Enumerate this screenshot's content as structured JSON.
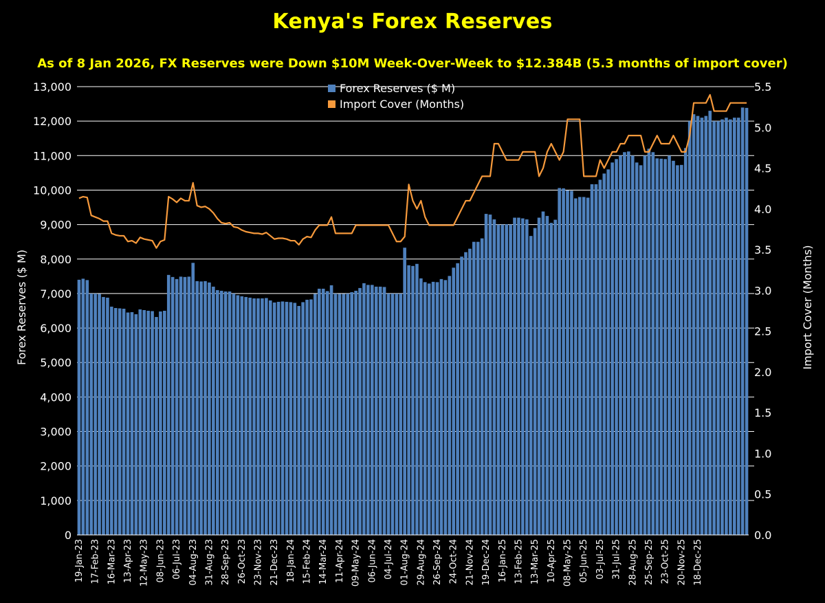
{
  "chart_data": {
    "type": "bar",
    "title": "Kenya's Forex Reserves",
    "subtitle": "As of 8 Jan 2026, FX Reserves were Down $10M Week-Over-Week to $12.384B (5.3 months of import cover)",
    "ylabel": "Forex Reserves ($ M)",
    "y2label": "Import Cover (Months)",
    "ylim": [
      0,
      13000
    ],
    "y2lim": [
      0,
      5.5
    ],
    "yticks": [
      "0",
      "1,000",
      "2,000",
      "3,000",
      "4,000",
      "5,000",
      "6,000",
      "7,000",
      "8,000",
      "9,000",
      "10,000",
      "11,000",
      "12,000",
      "13,000"
    ],
    "y2ticks": [
      "0.0",
      "0.5",
      "1.0",
      "1.5",
      "2.0",
      "2.5",
      "3.0",
      "3.5",
      "4.0",
      "4.5",
      "5.0",
      "5.5"
    ],
    "grid": "horizontal",
    "legend_position": "top-center",
    "x_tick_labels": [
      "19-Jan-23",
      "17-Feb-23",
      "16-Mar-23",
      "13-Apr-23",
      "12-May-23",
      "08-Jun-23",
      "06-Jul-23",
      "04-Aug-23",
      "31-Aug-23",
      "28-Sep-23",
      "26-Oct-23",
      "23-Nov-23",
      "21-Dec-23",
      "18-Jan-24",
      "15-Feb-24",
      "14-Mar-24",
      "11-Apr-24",
      "09-May-24",
      "06-Jun-24",
      "04-Jul-24",
      "01-Aug-24",
      "29-Aug-24",
      "26-Sep-24",
      "24-Oct-24",
      "21-Nov-24",
      "19-Dec-24",
      "16-Jan-25",
      "13-Feb-25",
      "13-Mar-25",
      "10-Apr-25",
      "08-May-25",
      "05-Jun-25",
      "03-Jul-25",
      "31-Jul-25",
      "28-Aug-25",
      "25-Sep-25",
      "23-Oct-25",
      "20-Nov-25",
      "18-Dec-25"
    ],
    "colors": {
      "bars": "#4f81bd",
      "line": "#f79a3c",
      "grid": "#ffffff",
      "title": "#ffff00"
    },
    "series": [
      {
        "name": "Forex Reserves ($ M)",
        "type": "bar",
        "axis": "left",
        "values": [
          7400,
          7430,
          7390,
          7000,
          7000,
          6990,
          6900,
          6880,
          6620,
          6580,
          6570,
          6560,
          6450,
          6460,
          6400,
          6540,
          6520,
          6500,
          6490,
          6320,
          6480,
          6500,
          7540,
          7480,
          7420,
          7490,
          7480,
          7490,
          7890,
          7360,
          7350,
          7360,
          7320,
          7200,
          7100,
          7080,
          7060,
          7060,
          7000,
          6950,
          6920,
          6900,
          6880,
          6860,
          6860,
          6860,
          6870,
          6800,
          6740,
          6760,
          6770,
          6760,
          6750,
          6730,
          6640,
          6750,
          6820,
          6830,
          6990,
          7140,
          7140,
          7070,
          7240,
          7000,
          6990,
          6990,
          7000,
          7040,
          7080,
          7160,
          7300,
          7250,
          7250,
          7200,
          7200,
          7190,
          7000,
          7000,
          7000,
          7000,
          8330,
          7820,
          7800,
          7860,
          7440,
          7330,
          7290,
          7340,
          7330,
          7420,
          7390,
          7510,
          7750,
          7880,
          8070,
          8200,
          8300,
          8500,
          8500,
          8600,
          9310,
          9290,
          9150,
          9000,
          9000,
          9010,
          9000,
          9200,
          9200,
          9180,
          9150,
          8670,
          8900,
          9200,
          9380,
          9250,
          9050,
          9140,
          10060,
          10050,
          9990,
          9980,
          9760,
          9800,
          9800,
          9780,
          10170,
          10170,
          10300,
          10480,
          10600,
          10800,
          10900,
          11000,
          11100,
          11120,
          11000,
          10800,
          10720,
          11000,
          11200,
          11100,
          10920,
          10910,
          10900,
          11000,
          10850,
          10720,
          10730,
          11220,
          12000,
          12200,
          12150,
          12100,
          12150,
          12300,
          12000,
          12000,
          12050,
          12100,
          12050,
          12100,
          12100,
          12394,
          12384
        ],
        "x_range": [
          "19-Jan-23",
          "08-Jan-26"
        ]
      },
      {
        "name": "Import Cover (Months)",
        "type": "line",
        "axis": "right",
        "values": [
          4.13,
          4.15,
          4.14,
          3.92,
          3.9,
          3.88,
          3.85,
          3.85,
          3.7,
          3.68,
          3.67,
          3.67,
          3.6,
          3.61,
          3.58,
          3.65,
          3.63,
          3.62,
          3.61,
          3.52,
          3.6,
          3.62,
          4.15,
          4.12,
          4.08,
          4.13,
          4.1,
          4.1,
          4.32,
          4.04,
          4.02,
          4.03,
          4.0,
          3.95,
          3.88,
          3.83,
          3.82,
          3.83,
          3.78,
          3.77,
          3.74,
          3.72,
          3.71,
          3.7,
          3.7,
          3.69,
          3.71,
          3.67,
          3.63,
          3.64,
          3.64,
          3.63,
          3.61,
          3.61,
          3.56,
          3.63,
          3.66,
          3.65,
          3.74,
          3.8,
          3.8,
          3.8,
          3.9,
          3.7,
          3.7,
          3.7,
          3.7,
          3.7,
          3.8,
          3.8,
          3.8,
          3.8,
          3.8,
          3.8,
          3.8,
          3.8,
          3.8,
          3.7,
          3.6,
          3.6,
          3.66,
          4.3,
          4.1,
          4.0,
          4.1,
          3.9,
          3.8,
          3.8,
          3.8,
          3.8,
          3.8,
          3.8,
          3.8,
          3.9,
          4.0,
          4.1,
          4.1,
          4.2,
          4.3,
          4.4,
          4.4,
          4.4,
          4.8,
          4.8,
          4.7,
          4.6,
          4.6,
          4.6,
          4.6,
          4.7,
          4.7,
          4.7,
          4.7,
          4.4,
          4.5,
          4.7,
          4.8,
          4.7,
          4.6,
          4.7,
          5.1,
          5.1,
          5.1,
          5.1,
          4.4,
          4.4,
          4.4,
          4.4,
          4.6,
          4.5,
          4.6,
          4.7,
          4.7,
          4.8,
          4.8,
          4.9,
          4.9,
          4.9,
          4.9,
          4.7,
          4.7,
          4.8,
          4.9,
          4.8,
          4.8,
          4.8,
          4.9,
          4.8,
          4.7,
          4.7,
          4.9,
          5.3,
          5.3,
          5.3,
          5.3,
          5.4,
          5.2,
          5.2,
          5.2,
          5.2,
          5.3,
          5.3,
          5.3,
          5.3,
          5.3
        ]
      }
    ]
  }
}
